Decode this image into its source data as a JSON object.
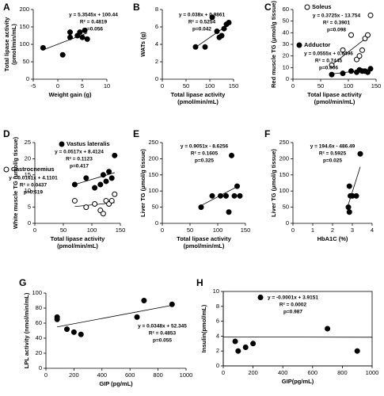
{
  "chart_data": [
    {
      "type": "scatter",
      "panel": "A",
      "ylabel": [
        "Total lipase activity",
        "(pmol/min/mL)"
      ],
      "xlabel": [
        "Weight gain (g)"
      ],
      "xlim": [
        -5,
        10
      ],
      "xticks": [
        -5,
        0,
        5,
        10
      ],
      "ylim": [
        0,
        200
      ],
      "yticks": [
        0,
        50,
        100,
        150,
        200
      ],
      "series": [
        {
          "marker": "filled",
          "x": [
            -3,
            1,
            2.5,
            2.5,
            4,
            4.5,
            5,
            5.5,
            6
          ],
          "values": [
            90,
            70,
            120,
            135,
            125,
            135,
            120,
            140,
            115
          ]
        }
      ],
      "trendlines": [
        {
          "x": [
            -3,
            6
          ],
          "values": [
            84,
            132.6
          ]
        }
      ],
      "annotations": [
        "y = 5.3545x + 100.44",
        "R² = 0.4819",
        "p=0.056"
      ]
    },
    {
      "type": "scatter",
      "panel": "B",
      "ylabel": [
        "WATs (g)"
      ],
      "xlabel": [
        "Total lipase activity",
        "(pmol/min/mL)"
      ],
      "xlim": [
        0,
        150
      ],
      "xticks": [
        0,
        50,
        100,
        150
      ],
      "ylim": [
        0,
        8
      ],
      "yticks": [
        0,
        2,
        4,
        6,
        8
      ],
      "series": [
        {
          "marker": "filled",
          "x": [
            70,
            90,
            105,
            115,
            120,
            125,
            130,
            135,
            140
          ],
          "values": [
            3.7,
            3.7,
            7.1,
            5.5,
            4.8,
            5.0,
            5.8,
            6.3,
            6.5
          ]
        }
      ],
      "trendlines": [
        {
          "x": [
            70,
            140
          ],
          "values": [
            3.65,
            6.3
          ]
        }
      ],
      "annotations": [
        "y = 0.038x + 0.9861",
        "R² = 0.5254",
        "p=0.042"
      ]
    },
    {
      "type": "scatter",
      "panel": "C",
      "ylabel": [
        "Red muscle TG (μmol/g tissue)"
      ],
      "xlabel": [
        "Total lipase activity",
        "(pmol/min/mL)"
      ],
      "xlim": [
        0,
        150
      ],
      "xticks": [
        0,
        50,
        100,
        150
      ],
      "ylim": [
        0,
        60
      ],
      "yticks": [
        0,
        10,
        20,
        30,
        40,
        50,
        60
      ],
      "series": [
        {
          "name": "Soleus",
          "marker": "open",
          "x": [
            70,
            90,
            105,
            115,
            120,
            125,
            130,
            135,
            140
          ],
          "values": [
            12,
            25,
            38,
            17,
            20,
            25,
            35,
            38,
            55
          ]
        },
        {
          "name": "Adductor",
          "marker": "filled",
          "x": [
            70,
            90,
            105,
            115,
            120,
            125,
            130,
            135,
            140
          ],
          "values": [
            4,
            5,
            7,
            6,
            8,
            7,
            7,
            6,
            9
          ]
        }
      ],
      "trendlines": [
        {
          "x": [
            70,
            140
          ],
          "values": [
            12.3,
            38.4
          ]
        },
        {
          "x": [
            70,
            140
          ],
          "values": [
            4.5,
            8.4
          ]
        }
      ],
      "annotations": [
        "y = 0.3725x - 13.754",
        "R² = 0.3901",
        "p=0.098",
        "y = 0.0555x + 0.6496",
        "R² = 0.7445",
        "p=0.006"
      ]
    },
    {
      "type": "scatter",
      "panel": "D",
      "ylabel": [
        "White muscle TG (μmol/g tissue)"
      ],
      "xlabel": [
        "Total lipase activity",
        "(pmol/min/mL)"
      ],
      "xlim": [
        0,
        150
      ],
      "xticks": [
        0,
        50,
        100,
        150
      ],
      "ylim": [
        0,
        25
      ],
      "yticks": [
        0,
        5,
        10,
        15,
        20,
        25
      ],
      "series": [
        {
          "name": "Vastus lateralis",
          "marker": "filled",
          "x": [
            70,
            90,
            105,
            115,
            120,
            125,
            130,
            135,
            140
          ],
          "values": [
            12,
            14,
            11,
            12,
            15,
            13,
            16,
            14,
            21
          ]
        },
        {
          "name": "Gastrocnemius",
          "marker": "open",
          "x": [
            70,
            90,
            105,
            115,
            120,
            125,
            130,
            135,
            140
          ],
          "values": [
            7,
            5,
            6,
            4,
            3,
            7,
            6,
            7,
            9
          ]
        }
      ],
      "trendlines": [
        {
          "x": [
            70,
            140
          ],
          "values": [
            12.0,
            15.7
          ]
        },
        {
          "x": [
            70,
            140
          ],
          "values": [
            5.2,
            6.4
          ]
        }
      ],
      "annotations": [
        "y = 0.0517x + 8.4124",
        "R² = 0.1123",
        "p=0.417",
        "y = 0.0161x + 4.1101",
        "R² = 0.0437",
        "p=0.619"
      ]
    },
    {
      "type": "scatter",
      "panel": "E",
      "ylabel": [
        "Liver TG (μmol/g tissue)"
      ],
      "xlabel": [
        "Total lipase activity",
        "(pmol/min/mL)"
      ],
      "xlim": [
        0,
        150
      ],
      "xticks": [
        0,
        50,
        100,
        150
      ],
      "ylim": [
        0,
        250
      ],
      "yticks": [
        0,
        50,
        100,
        150,
        200,
        250
      ],
      "series": [
        {
          "marker": "filled",
          "x": [
            70,
            90,
            105,
            115,
            120,
            125,
            130,
            135,
            140
          ],
          "values": [
            50,
            85,
            85,
            85,
            35,
            210,
            85,
            115,
            85
          ]
        }
      ],
      "trendlines": [
        {
          "x": [
            70,
            140
          ],
          "values": [
            55,
            118
          ]
        }
      ],
      "annotations": [
        "y = 0.9051x - 8.6256",
        "R² = 0.1605",
        "p=0.325"
      ]
    },
    {
      "type": "scatter",
      "panel": "F",
      "ylabel": [
        "Liver TG (μmol/g tissue)"
      ],
      "xlabel": [
        "HbA1C (%)"
      ],
      "xlim": [
        0,
        4
      ],
      "xticks": [
        0,
        1,
        2,
        3,
        4
      ],
      "ylim": [
        0,
        250
      ],
      "yticks": [
        0,
        50,
        100,
        150,
        200,
        250
      ],
      "series": [
        {
          "marker": "filled",
          "x": [
            2.8,
            2.85,
            2.9,
            2.85,
            3.0,
            3.2,
            3.4
          ],
          "values": [
            50,
            115,
            85,
            35,
            85,
            85,
            215
          ]
        }
      ],
      "trendlines": [
        {
          "x": [
            2.8,
            3.4
          ],
          "values": [
            58.5,
            175
          ]
        }
      ],
      "annotations": [
        "y = 194.6x - 486.49",
        "R² = 0.5925",
        "p=0.025"
      ]
    },
    {
      "type": "scatter",
      "panel": "G",
      "ylabel": [
        "LPL activity (nmol/min/mL)"
      ],
      "xlabel": [
        "GIP (pg/mL)"
      ],
      "xlim": [
        0,
        1000
      ],
      "xticks": [
        0,
        200,
        400,
        600,
        800,
        1000
      ],
      "ylim": [
        0,
        100
      ],
      "yticks": [
        0,
        20,
        40,
        60,
        80,
        100
      ],
      "series": [
        {
          "marker": "filled",
          "x": [
            80,
            80,
            150,
            200,
            250,
            650,
            700,
            900
          ],
          "values": [
            65,
            68,
            52,
            48,
            45,
            68,
            90,
            85
          ]
        }
      ],
      "trendlines": [
        {
          "x": [
            80,
            900
          ],
          "values": [
            55,
            83.7
          ]
        }
      ],
      "annotations": [
        "y = 0.0348x + 52.345",
        "R² = 0.4853",
        "p=0.055"
      ]
    },
    {
      "type": "scatter",
      "panel": "H",
      "ylabel": [
        "Insulin(pmol/mL)"
      ],
      "xlabel": [
        "GIP(pg/mL)"
      ],
      "frame": true,
      "xlim": [
        0,
        1000
      ],
      "xticks": [
        0,
        200,
        400,
        600,
        800,
        1000
      ],
      "ylim": [
        0,
        10
      ],
      "yticks": [
        0,
        2,
        4,
        6,
        8,
        10
      ],
      "series": [
        {
          "marker": "filled",
          "x": [
            80,
            100,
            150,
            200,
            250,
            700,
            900
          ],
          "values": [
            3.3,
            2.0,
            2.5,
            3.0,
            9.2,
            5.0,
            2.0
          ]
        }
      ],
      "trendlines": [
        {
          "x": [
            0,
            1000
          ],
          "values": [
            3.9,
            3.85
          ]
        }
      ],
      "annotations": [
        "y = -0.0001x + 3.9151",
        "R² = 0.0002",
        "p=0.987"
      ]
    }
  ]
}
